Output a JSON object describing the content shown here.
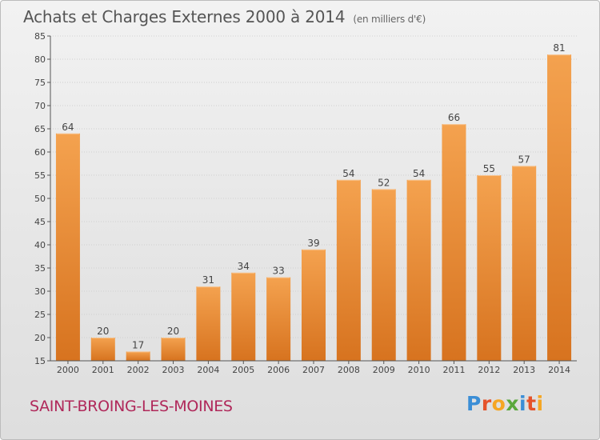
{
  "header": {
    "title": "Achats et Charges Externes 2000 à 2014",
    "unit": "(en milliers d'€)"
  },
  "footer": {
    "commune": "SAINT-BROING-LES-MOINES",
    "logo_text": "Proxiti",
    "logo_colors": [
      "#3b8ed6",
      "#e5522a",
      "#f5a623",
      "#5aa83c",
      "#3b8ed6",
      "#e5522a",
      "#f5a623"
    ]
  },
  "colors": {
    "bar_top": "#f4a24f",
    "bar_bottom": "#d7731f",
    "title": "#555555",
    "commune": "#b0285a"
  },
  "chart_data": {
    "type": "bar",
    "categories": [
      "2000",
      "2001",
      "2002",
      "2003",
      "2004",
      "2005",
      "2006",
      "2007",
      "2008",
      "2009",
      "2010",
      "2011",
      "2012",
      "2013",
      "2014"
    ],
    "values": [
      64,
      20,
      17,
      20,
      31,
      34,
      33,
      39,
      54,
      52,
      54,
      66,
      55,
      57,
      81
    ],
    "ylim": [
      15,
      85
    ],
    "yticks": [
      15,
      20,
      25,
      30,
      35,
      40,
      45,
      50,
      55,
      60,
      65,
      70,
      75,
      80,
      85
    ],
    "grid": true
  }
}
